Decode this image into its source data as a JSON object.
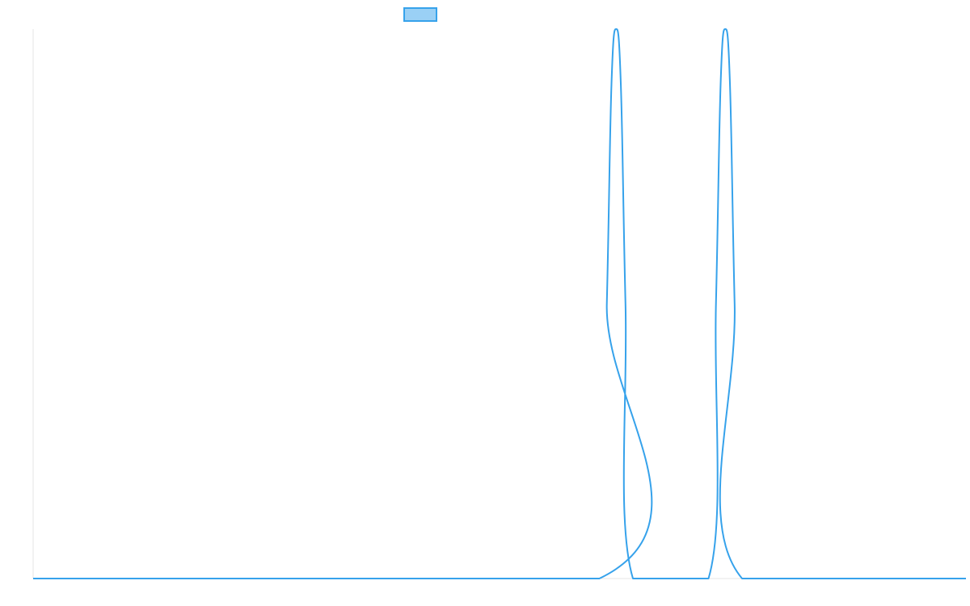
{
  "chart_data": {
    "type": "line",
    "title": "",
    "xlabel": "",
    "ylabel": "",
    "xlim": [
      0,
      1.0
    ],
    "ylim": [
      0,
      1.0
    ],
    "grid": false,
    "legend_placement": "top-center",
    "series": [
      {
        "name": "",
        "color": "#36a2eb",
        "fill_color": "#9ad0f5",
        "x": [
          0.0,
          0.607,
          0.615,
          0.62,
          0.625,
          0.63,
          0.635,
          0.643,
          0.724,
          0.732,
          0.737,
          0.742,
          0.747,
          0.752,
          0.76,
          1.0
        ],
        "y": [
          0.0,
          0.0,
          0.5,
          0.9,
          1.0,
          0.9,
          0.5,
          0.0,
          0.0,
          0.5,
          0.9,
          1.0,
          0.9,
          0.5,
          0.0,
          0.0
        ]
      }
    ]
  }
}
